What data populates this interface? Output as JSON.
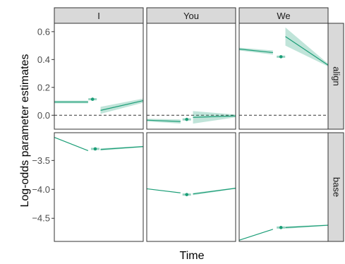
{
  "chart_data": {
    "type": "line",
    "ylabel": "Log-odds parameter estimates",
    "xlabel": "Time",
    "columns": [
      "I",
      "You",
      "We"
    ],
    "rows": [
      "align",
      "base"
    ],
    "xlim": [
      0,
      1
    ],
    "yticks": {
      "align": [
        0.0,
        0.2,
        0.4,
        0.6
      ],
      "base": [
        -4.5,
        -4.0,
        -3.5
      ]
    },
    "ylim": {
      "align": [
        -0.1,
        0.66
      ],
      "base": [
        -4.9,
        -3.02
      ]
    },
    "reference_line": {
      "row": "align",
      "y": 0.0,
      "style": "dashed"
    },
    "panels": [
      {
        "row": "align",
        "col": "I",
        "segments": [
          {
            "x": [
              0.0,
              0.38
            ],
            "y": [
              0.095,
              0.095
            ],
            "lo": [
              0.085,
              0.085
            ],
            "hi": [
              0.105,
              0.105
            ]
          },
          {
            "x": [
              0.52,
              1.0
            ],
            "y": [
              0.035,
              0.105
            ],
            "lo": [
              0.01,
              0.09
            ],
            "hi": [
              0.06,
              0.12
            ]
          }
        ],
        "point": {
          "x": 0.43,
          "y": 0.115,
          "lo": 0.11,
          "hi": 0.12
        }
      },
      {
        "row": "align",
        "col": "You",
        "segments": [
          {
            "x": [
              0.0,
              0.38
            ],
            "y": [
              -0.035,
              -0.045
            ],
            "lo": [
              -0.045,
              -0.06
            ],
            "hi": [
              -0.025,
              -0.03
            ]
          },
          {
            "x": [
              0.52,
              1.0
            ],
            "y": [
              -0.015,
              -0.005
            ],
            "lo": [
              -0.06,
              -0.015
            ],
            "hi": [
              0.03,
              0.005
            ]
          }
        ],
        "point": {
          "x": 0.45,
          "y": -0.03,
          "lo": -0.035,
          "hi": -0.025
        }
      },
      {
        "row": "align",
        "col": "We",
        "segments": [
          {
            "x": [
              0.0,
              0.38
            ],
            "y": [
              0.475,
              0.45
            ],
            "lo": [
              0.465,
              0.435
            ],
            "hi": [
              0.485,
              0.465
            ]
          },
          {
            "x": [
              0.52,
              1.0
            ],
            "y": [
              0.565,
              0.36
            ],
            "lo": [
              0.5,
              0.35
            ],
            "hi": [
              0.63,
              0.37
            ]
          }
        ],
        "point": {
          "x": 0.47,
          "y": 0.42,
          "lo": 0.415,
          "hi": 0.425
        }
      },
      {
        "row": "base",
        "col": "I",
        "segments": [
          {
            "x": [
              0.0,
              0.38
            ],
            "y": [
              -3.1,
              -3.33
            ],
            "lo": [
              -3.1,
              -3.33
            ],
            "hi": [
              -3.1,
              -3.33
            ]
          },
          {
            "x": [
              0.52,
              1.0
            ],
            "y": [
              -3.31,
              -3.26
            ],
            "lo": [
              -3.33,
              -3.27
            ],
            "hi": [
              -3.29,
              -3.25
            ]
          }
        ],
        "point": {
          "x": 0.46,
          "y": -3.3,
          "lo": -3.305,
          "hi": -3.295
        }
      },
      {
        "row": "base",
        "col": "You",
        "segments": [
          {
            "x": [
              0.0,
              0.38
            ],
            "y": [
              -3.99,
              -4.06
            ],
            "lo": [
              -3.99,
              -4.06
            ],
            "hi": [
              -3.99,
              -4.06
            ]
          },
          {
            "x": [
              0.52,
              1.0
            ],
            "y": [
              -4.08,
              -3.98
            ],
            "lo": [
              -4.1,
              -3.99
            ],
            "hi": [
              -4.06,
              -3.97
            ]
          }
        ],
        "point": {
          "x": 0.45,
          "y": -4.09,
          "lo": -4.095,
          "hi": -4.085
        }
      },
      {
        "row": "base",
        "col": "We",
        "segments": [
          {
            "x": [
              0.0,
              0.38
            ],
            "y": [
              -4.88,
              -4.69
            ],
            "lo": [
              -4.88,
              -4.69
            ],
            "hi": [
              -4.88,
              -4.69
            ]
          },
          {
            "x": [
              0.52,
              1.0
            ],
            "y": [
              -4.66,
              -4.62
            ],
            "lo": [
              -4.68,
              -4.63
            ],
            "hi": [
              -4.64,
              -4.61
            ]
          }
        ],
        "point": {
          "x": 0.47,
          "y": -4.66,
          "lo": -4.665,
          "hi": -4.655
        }
      }
    ],
    "grid": false,
    "legend": "none",
    "colors": {
      "line": "#1b9e77",
      "band": "#1b9e77",
      "strip_background": "#d9d9d9",
      "panel_border": "#333333",
      "reference_line": "#333333"
    }
  }
}
